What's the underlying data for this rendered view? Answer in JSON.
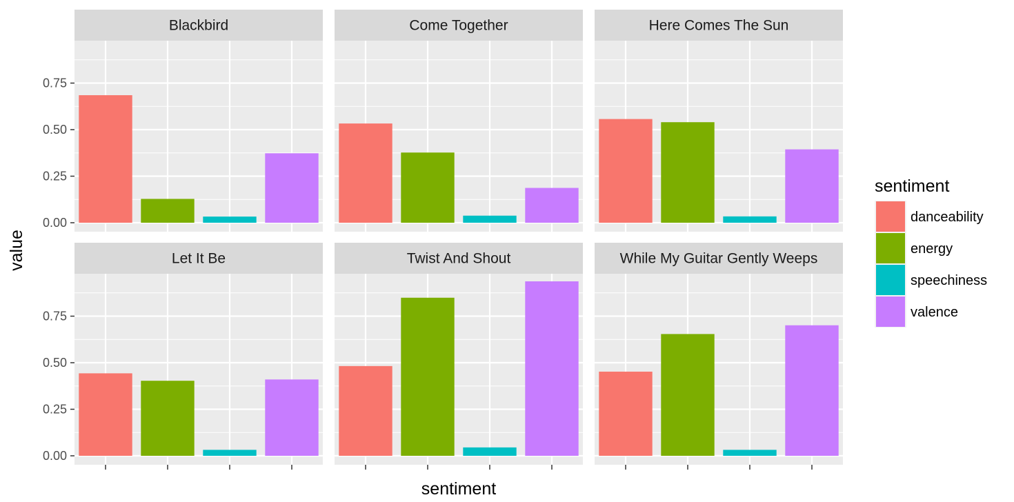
{
  "chart_data": {
    "type": "bar",
    "facet_layout": "2x3",
    "xlabel": "sentiment",
    "ylabel": "value",
    "ylim": [
      0,
      1.0
    ],
    "y_ticks": [
      "0.00",
      "0.25",
      "0.50",
      "0.75"
    ],
    "y_tick_values": [
      0,
      0.25,
      0.5,
      0.75
    ],
    "categories": [
      "danceability",
      "energy",
      "speechiness",
      "valence"
    ],
    "colors": {
      "danceability": "#F8766D",
      "energy": "#7CAE00",
      "speechiness": "#00BFC4",
      "valence": "#C77CFF"
    },
    "legend": {
      "title": "sentiment",
      "position": "right",
      "entries": [
        "danceability",
        "energy",
        "speechiness",
        "valence"
      ]
    },
    "grid": true,
    "panel_background": "#EBEBEB",
    "strip_background": "#D9D9D9",
    "facets": [
      {
        "title": "Blackbird",
        "values": [
          0.685,
          0.128,
          0.033,
          0.373
        ]
      },
      {
        "title": "Come Together",
        "values": [
          0.533,
          0.377,
          0.038,
          0.187
        ]
      },
      {
        "title": "Here Comes The Sun",
        "values": [
          0.557,
          0.54,
          0.034,
          0.394
        ]
      },
      {
        "title": "Let It Be",
        "values": [
          0.443,
          0.403,
          0.032,
          0.41
        ]
      },
      {
        "title": "Twist And Shout",
        "values": [
          0.482,
          0.849,
          0.045,
          0.937
        ]
      },
      {
        "title": "While My Guitar Gently Weeps",
        "values": [
          0.452,
          0.654,
          0.032,
          0.701
        ]
      }
    ]
  }
}
